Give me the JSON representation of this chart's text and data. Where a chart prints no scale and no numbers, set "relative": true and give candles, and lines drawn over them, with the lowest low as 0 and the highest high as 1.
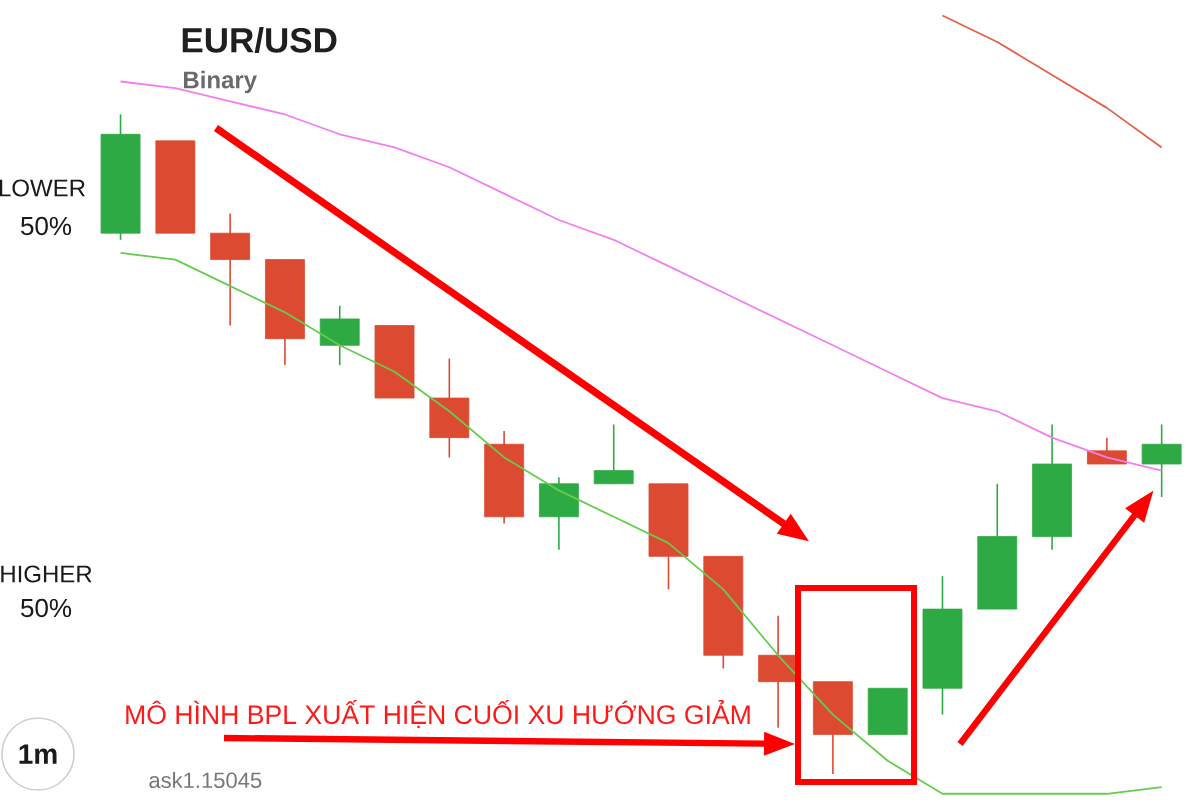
{
  "chart_data": {
    "type": "candlestick",
    "title": "EUR/USD",
    "subtitle": "Binary",
    "relative": true,
    "categories": [
      null,
      null,
      null,
      null,
      null,
      null,
      null,
      null,
      null,
      null,
      null,
      null,
      null,
      null,
      null,
      null,
      null,
      null,
      null,
      null
    ],
    "ohlc": [
      [
        0.82,
        1.0,
        0.81,
        0.97
      ],
      [
        0.96,
        0.96,
        0.82,
        0.82
      ],
      [
        0.82,
        0.85,
        0.68,
        0.78
      ],
      [
        0.78,
        0.78,
        0.62,
        0.66
      ],
      [
        0.65,
        0.71,
        0.62,
        0.69
      ],
      [
        0.68,
        0.68,
        0.57,
        0.57
      ],
      [
        0.57,
        0.63,
        0.48,
        0.51
      ],
      [
        0.5,
        0.52,
        0.38,
        0.39
      ],
      [
        0.39,
        0.45,
        0.34,
        0.44
      ],
      [
        0.44,
        0.53,
        0.44,
        0.46
      ],
      [
        0.44,
        0.44,
        0.28,
        0.33
      ],
      [
        0.33,
        0.33,
        0.16,
        0.18
      ],
      [
        0.18,
        0.24,
        0.07,
        0.14
      ],
      [
        0.14,
        0.14,
        0.0,
        0.06
      ],
      [
        0.06,
        0.13,
        0.06,
        0.13
      ],
      [
        0.13,
        0.3,
        0.09,
        0.25
      ],
      [
        0.25,
        0.44,
        0.25,
        0.36
      ],
      [
        0.36,
        0.53,
        0.34,
        0.47
      ],
      [
        0.49,
        0.51,
        0.47,
        0.47
      ],
      [
        0.47,
        0.53,
        0.42,
        0.5
      ]
    ],
    "colors": [
      "#2eaa45",
      "#dd4a32",
      "#dd4a32",
      "#dd4a32",
      "#2eaa45",
      "#dd4a32",
      "#dd4a32",
      "#dd4a32",
      "#2eaa45",
      "#2eaa45",
      "#dd4a32",
      "#dd4a32",
      "#dd4a32",
      "#dd4a32",
      "#2eaa45",
      "#2eaa45",
      "#2eaa45",
      "#2eaa45",
      "#dd4a32",
      "#2eaa45"
    ],
    "series": [
      {
        "type": "line",
        "color": "#f27ff2",
        "values": [
          1.05,
          1.04,
          1.02,
          1.0,
          0.97,
          0.95,
          0.92,
          0.88,
          0.84,
          0.81,
          0.77,
          0.73,
          0.69,
          0.65,
          0.61,
          0.57,
          0.55,
          0.51,
          0.48,
          0.46
        ]
      },
      {
        "type": "line",
        "color": "#66cc4d",
        "values": [
          0.79,
          0.78,
          0.74,
          0.7,
          0.65,
          0.61,
          0.55,
          0.48,
          0.43,
          0.39,
          0.35,
          0.28,
          0.18,
          0.09,
          0.02,
          -0.03,
          -0.03,
          -0.03,
          -0.03,
          -0.02
        ]
      },
      {
        "type": "line",
        "color": "#e5604c",
        "values": [
          null,
          null,
          null,
          null,
          null,
          null,
          null,
          null,
          null,
          null,
          null,
          null,
          null,
          null,
          null,
          1.15,
          1.11,
          1.06,
          1.01,
          0.95
        ]
      }
    ],
    "annotations": [
      "MÔ HÌNH BPL XUẤT HIỆN CUỐI XU HƯỚNG GIẢM",
      "LOWER",
      "50%",
      "HIGHER",
      "50%",
      "1m",
      "ask1.15045"
    ]
  }
}
